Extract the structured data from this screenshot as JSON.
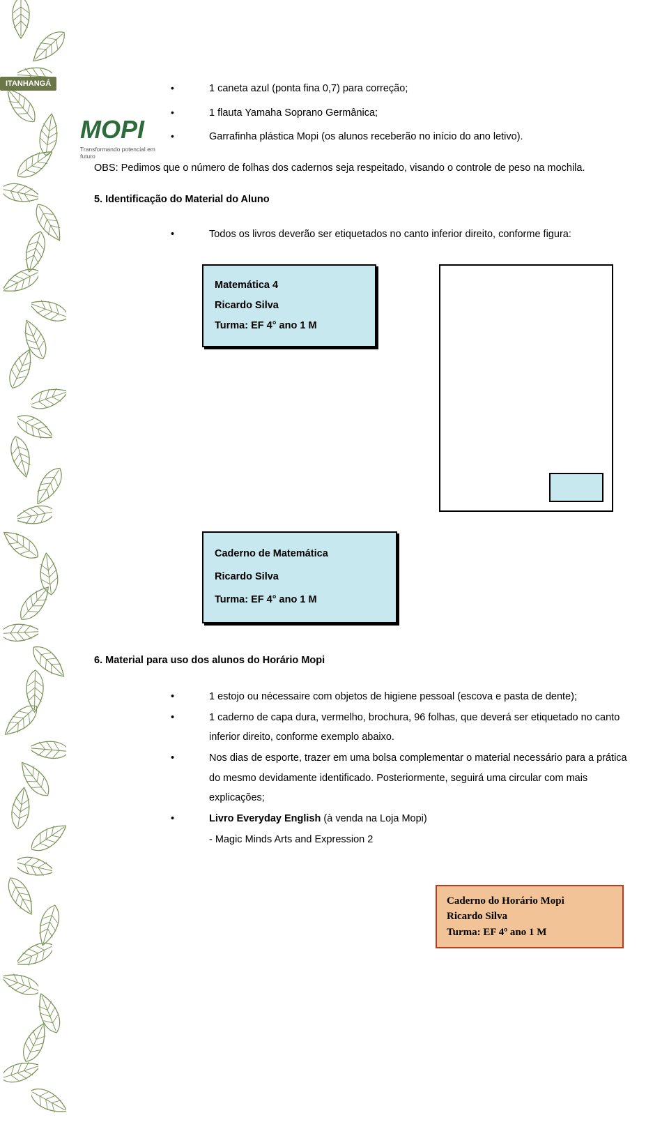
{
  "badge": "ITANHANGÁ",
  "logo": {
    "text": "MOPI",
    "sub": "Transformando potencial em futuro",
    "color": "#2e6b3a"
  },
  "top_bullets": [
    "1 caneta azul (ponta fina 0,7) para correção;",
    "1 flauta Yamaha Soprano Germânica;",
    "Garrafinha plástica Mopi (os alunos receberão no início do ano letivo)."
  ],
  "obs": "OBS: Pedimos que o número de folhas dos cadernos seja respeitado, visando o controle de peso na mochila.",
  "section5": {
    "heading": "5.   Identificação do Material do Aluno",
    "bullet": "Todos os livros deverão ser etiquetados no canto inferior direito, conforme figura:"
  },
  "label1": {
    "l1": "Matemática 4",
    "l2": "Ricardo Silva",
    "l3": "Turma: EF 4° ano  1 M",
    "bg": "#c7e8ee"
  },
  "label2": {
    "l1": "Caderno de Matemática",
    "l2": "Ricardo Silva",
    "l3": "Turma: EF 4° ano 1 M",
    "bg": "#c7e8ee"
  },
  "bookfig": {
    "border": "#000000",
    "inner_bg": "#c7e8ee"
  },
  "section6": {
    "heading": "6.   Material para uso dos alunos do Horário Mopi",
    "items": [
      "1 estojo ou nécessaire com objetos de higiene pessoal (escova e pasta de  dente);",
      "1 caderno de capa dura, vermelho, brochura, 96 folhas, que deverá ser etiquetado no canto inferior direito, conforme exemplo abaixo.",
      "Nos dias de esporte, trazer em uma bolsa complementar o material necessário para a prática do mesmo devidamente identificado. Posteriormente, seguirá uma circular com mais explicações;"
    ],
    "item4_pre": "Livro Everyday English",
    "item4_post": " (à venda na Loja Mopi)",
    "sub": "- Magic Minds Arts and Expression 2"
  },
  "orange": {
    "l1": "Caderno do Horário Mopi",
    "l2": "Ricardo Silva",
    "l3": "Turma: EF 4º ano 1 M",
    "bg": "#f2c396",
    "border": "#bf3b1f"
  },
  "leaf": {
    "stroke": "#7a9456",
    "fill_light": "#ffffff"
  }
}
